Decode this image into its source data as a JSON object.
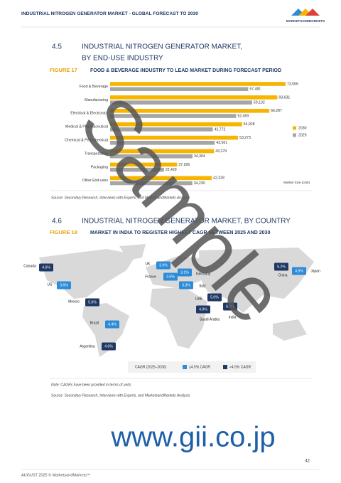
{
  "header": {
    "title": "INDUSTRIAL NITROGEN GENERATOR MARKET - GLOBAL FORECAST TO 2030",
    "logo": "MARKETSANDMARKETS"
  },
  "section_45": {
    "number": "4.5",
    "title_line1": "INDUSTRIAL NITROGEN GENERATOR MARKET,",
    "title_line2": "BY END-USE INDUSTRY"
  },
  "chart_data": {
    "type": "bar",
    "orientation": "horizontal",
    "figure_label": "FIGURE 17",
    "title": "FOOD & BEVERAGE INDUSTRY TO LEAD MARKET DURING FORECAST PERIOD",
    "categories": [
      "Food & Beverage",
      "Manufacturing",
      "Electrical & Electronics",
      "Medical & Pharmaceutical",
      "Chemical & Petrochemical",
      "Transportation",
      "Packaging",
      "Other End-uses"
    ],
    "series": [
      {
        "name": "2030",
        "color": "#f7b500",
        "values": [
          73066,
          69631,
          66287,
          54928,
          53273,
          43279,
          27926,
          42328
        ],
        "value_labels": [
          "73,066",
          "69,631",
          "66,287",
          "54,928",
          "53,273",
          "43,279",
          "27,926",
          "42,328"
        ]
      },
      {
        "name": "2025",
        "color": "#a6a6a6",
        "values": [
          57481,
          59132,
          52459,
          42772,
          43561,
          34304,
          22429,
          34230
        ],
        "value_labels": [
          "57,481",
          "59,132",
          "52,459",
          "42,772",
          "43,561",
          "34,304",
          "22,429",
          "34,230"
        ]
      }
    ],
    "unit_note": "Market Size (Unit)",
    "source": "Source: Secondary Research, Interviews with Experts, and MarketsandMarkets Analysis"
  },
  "section_46": {
    "number": "4.6",
    "title": "INDUSTRIAL NITROGEN GENERATOR MARKET, BY COUNTRY"
  },
  "figure_18": {
    "label": "FIGURE 18",
    "title": "MARKET IN INDIA TO REGISTER HIGHEST CAGR BETWEEN 2025 AND 2030",
    "countries": [
      {
        "name": "Canada",
        "cagr": "4.6%",
        "color": "#1f3864"
      },
      {
        "name": "US",
        "cagr": "3.6%",
        "color": "#2e8bd8"
      },
      {
        "name": "Mexico",
        "cagr": "5.0%",
        "color": "#1f3864"
      },
      {
        "name": "Brazil",
        "cagr": "4.4%",
        "color": "#2e8bd8"
      },
      {
        "name": "Argentina",
        "cagr": "4.6%",
        "color": "#1f3864"
      },
      {
        "name": "UK",
        "cagr": "3.9%",
        "color": "#2e8bd8"
      },
      {
        "name": "France",
        "cagr": "3.5%",
        "color": "#2e8bd8"
      },
      {
        "name": "Germany",
        "cagr": "3.1%",
        "color": "#2e8bd8"
      },
      {
        "name": "Italy",
        "cagr": "3.3%",
        "color": "#2e8bd8"
      },
      {
        "name": "UAE",
        "cagr": "5.0%",
        "color": "#1f3864"
      },
      {
        "name": "Saudi Arabia",
        "cagr": "4.9%",
        "color": "#1f3864"
      },
      {
        "name": "India",
        "cagr": "6.0%",
        "color": "#1f3864"
      },
      {
        "name": "China",
        "cagr": "5.2%",
        "color": "#1f3864"
      },
      {
        "name": "Japan",
        "cagr": "4.5%",
        "color": "#2e8bd8"
      }
    ],
    "legend": {
      "title": "CAGR (2025–2030)",
      "items": [
        {
          "label": "≤4.5% CAGR",
          "color": "#2e8bd8"
        },
        {
          "label": ">4.5% CAGR",
          "color": "#1f3864"
        }
      ]
    },
    "note": "Note: CAGRs have been provided in terms of units.",
    "source": "Source: Secondary Research, Interviews with Experts, and MarketsandMarkets Analysis"
  },
  "watermark": {
    "sample": "Sample",
    "site": "www.gii.co.jp"
  },
  "footer": {
    "text": "AUGUST 2025 © MarketsandMarkets™",
    "page": "42"
  }
}
